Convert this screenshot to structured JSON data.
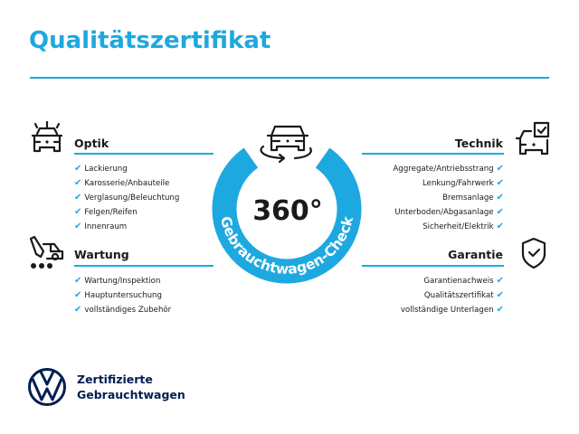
{
  "title": "Qualitätszertifikat",
  "colors": {
    "accent": "#1ea8e0",
    "brand_navy": "#001e50"
  },
  "center": {
    "value": "360°",
    "ring_text": "Gebrauchtwagen-Check",
    "icon": "car-rotate-icon"
  },
  "sections": {
    "optik": {
      "heading": "Optik",
      "icon": "car-lights-icon",
      "items": [
        "Lackierung",
        "Karosserie/Anbauteile",
        "Verglasung/Beleuchtung",
        "Felgen/Reifen",
        "Innenraum"
      ]
    },
    "wartung": {
      "heading": "Wartung",
      "icon": "service-tools-icon",
      "items": [
        "Wartung/Inspektion",
        "Hauptuntersuchung",
        "vollständiges Zubehör"
      ]
    },
    "technik": {
      "heading": "Technik",
      "icon": "car-checkbox-icon",
      "items": [
        "Aggregate/Antriebsstrang",
        "Lenkung/Fahrwerk",
        "Bremsanlage",
        "Unterboden/Abgasanlage",
        "Sicherheit/Elektrik"
      ]
    },
    "garantie": {
      "heading": "Garantie",
      "icon": "shield-check-icon",
      "items": [
        "Garantienachweis",
        "Qualitätszertifikat",
        "vollständige Unterlagen"
      ]
    }
  },
  "check_mark": "✔",
  "brand": {
    "line1": "Zertifizierte",
    "line2": "Gebrauchtwagen",
    "logo": "vw-logo"
  }
}
